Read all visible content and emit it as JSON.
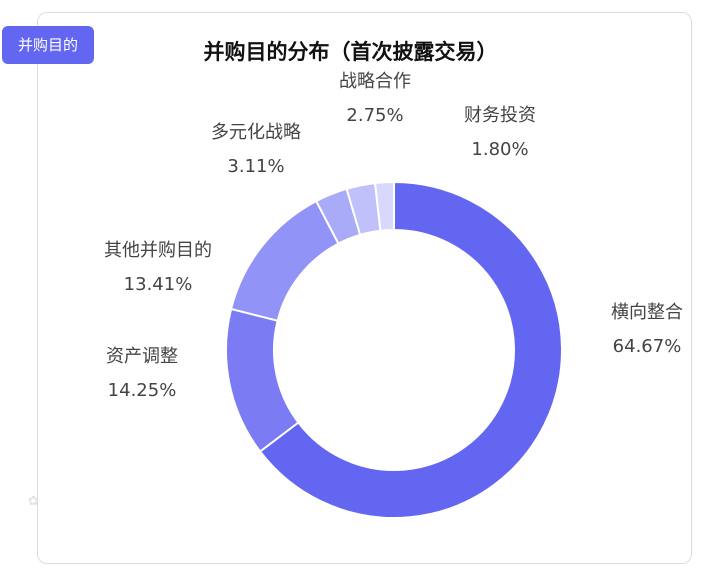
{
  "tag_label": "并购目的",
  "chart_data": {
    "type": "pie",
    "variant": "donut",
    "title": "并购目的分布（首次披露交易）",
    "slices": [
      {
        "label": "横向整合",
        "value": 64.67,
        "display": "64.67%",
        "color": "#6366f1"
      },
      {
        "label": "资产调整",
        "value": 14.25,
        "display": "14.25%",
        "color": "#7b7cf4"
      },
      {
        "label": "其他并购目的",
        "value": 13.41,
        "display": "13.41%",
        "color": "#9293f6"
      },
      {
        "label": "多元化战略",
        "value": 3.11,
        "display": "3.11%",
        "color": "#a9aaf8"
      },
      {
        "label": "战略合作",
        "value": 2.75,
        "display": "2.75%",
        "color": "#c0c1fa"
      },
      {
        "label": "财务投资",
        "value": 1.8,
        "display": "1.80%",
        "color": "#d7d8fc"
      }
    ]
  },
  "watermark_icon": "flower-icon"
}
